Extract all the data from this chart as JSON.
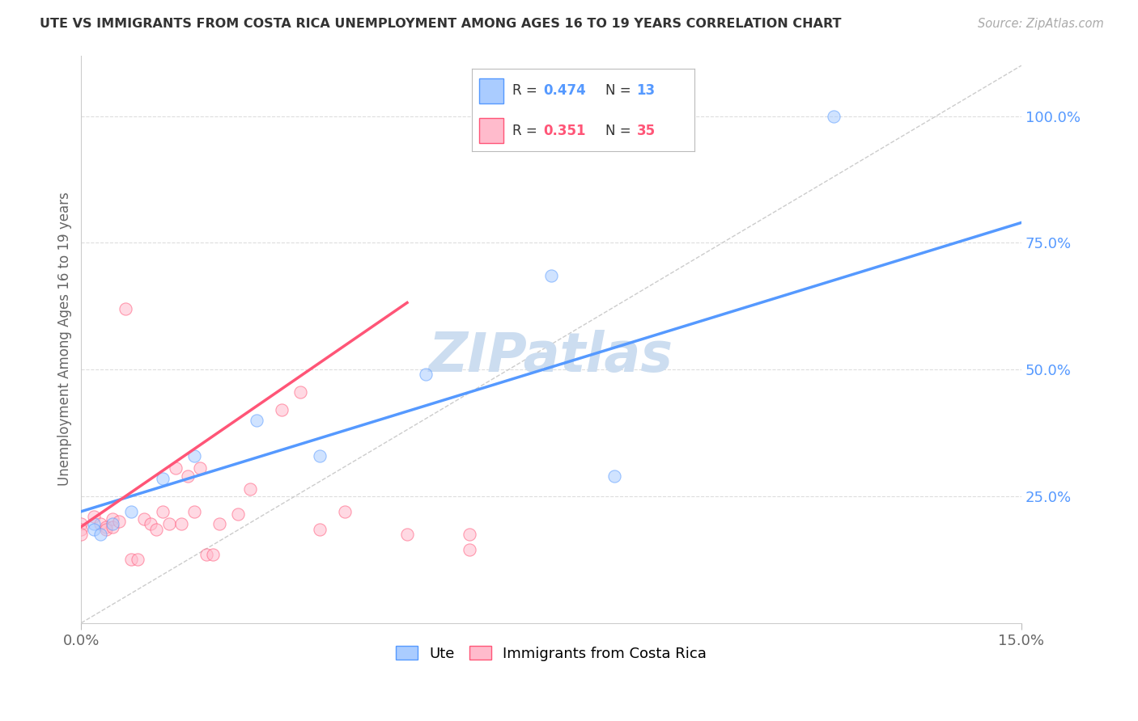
{
  "title": "UTE VS IMMIGRANTS FROM COSTA RICA UNEMPLOYMENT AMONG AGES 16 TO 19 YEARS CORRELATION CHART",
  "source": "Source: ZipAtlas.com",
  "ylabel": "Unemployment Among Ages 16 to 19 years",
  "xlim": [
    0.0,
    0.15
  ],
  "ylim": [
    0.0,
    1.12
  ],
  "blue_scatter_x": [
    0.002,
    0.002,
    0.003,
    0.005,
    0.008,
    0.013,
    0.018,
    0.028,
    0.038,
    0.055,
    0.075,
    0.085,
    0.12
  ],
  "blue_scatter_y": [
    0.195,
    0.185,
    0.175,
    0.195,
    0.22,
    0.285,
    0.33,
    0.4,
    0.33,
    0.49,
    0.685,
    0.29,
    1.0
  ],
  "pink_scatter_x": [
    0.0,
    0.0,
    0.0,
    0.002,
    0.003,
    0.004,
    0.004,
    0.005,
    0.005,
    0.006,
    0.007,
    0.008,
    0.009,
    0.01,
    0.011,
    0.012,
    0.013,
    0.014,
    0.015,
    0.016,
    0.017,
    0.018,
    0.019,
    0.02,
    0.021,
    0.022,
    0.025,
    0.027,
    0.032,
    0.035,
    0.038,
    0.042,
    0.052,
    0.062,
    0.062
  ],
  "pink_scatter_y": [
    0.195,
    0.185,
    0.175,
    0.21,
    0.195,
    0.19,
    0.185,
    0.205,
    0.19,
    0.2,
    0.62,
    0.125,
    0.125,
    0.205,
    0.195,
    0.185,
    0.22,
    0.195,
    0.305,
    0.195,
    0.29,
    0.22,
    0.305,
    0.135,
    0.135,
    0.195,
    0.215,
    0.265,
    0.42,
    0.455,
    0.185,
    0.22,
    0.175,
    0.175,
    0.145
  ],
  "blue_line_color": "#5599ff",
  "pink_line_color": "#ff5577",
  "blue_dot_facecolor": "#aaccff",
  "pink_dot_facecolor": "#ffbbcc",
  "diag_line_color": "#cccccc",
  "grid_color": "#dddddd",
  "title_color": "#333333",
  "source_color": "#aaaaaa",
  "watermark_color": "#ccddf0",
  "ylabel_color": "#666666",
  "ytick_color": "#5599ff",
  "dot_size": 120,
  "dot_alpha": 0.55,
  "line_width": 2.5,
  "blue_trend_slope": 3.8,
  "blue_trend_intercept": 0.22,
  "pink_trend_slope": 8.5,
  "pink_trend_intercept": 0.19,
  "pink_line_xmax": 0.052
}
